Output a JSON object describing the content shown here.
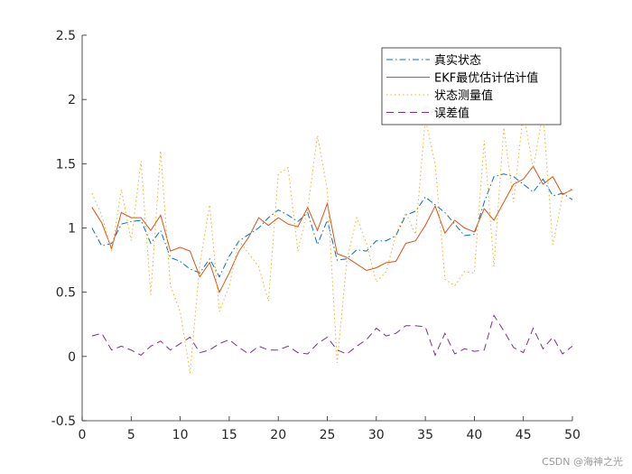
{
  "watermark": "CSDN @海神之光",
  "chart_data": {
    "type": "line",
    "xlim": [
      0,
      50
    ],
    "ylim": [
      -0.5,
      2.5
    ],
    "xticks": [
      0,
      5,
      10,
      15,
      20,
      25,
      30,
      35,
      40,
      45,
      50
    ],
    "yticks": [
      -0.5,
      0,
      0.5,
      1,
      1.5,
      2,
      2.5
    ],
    "xtick_labels": [
      "0",
      "5",
      "10",
      "15",
      "20",
      "25",
      "30",
      "35",
      "40",
      "45",
      "50"
    ],
    "ytick_labels": [
      "-0.5",
      "0",
      "0.5",
      "1",
      "1.5",
      "2",
      "2.5"
    ],
    "legend_position": "top-right",
    "grid": false,
    "x": [
      1,
      2,
      3,
      4,
      5,
      6,
      7,
      8,
      9,
      10,
      11,
      12,
      13,
      14,
      15,
      16,
      17,
      18,
      19,
      20,
      21,
      22,
      23,
      24,
      25,
      26,
      27,
      28,
      29,
      30,
      31,
      32,
      33,
      34,
      35,
      36,
      37,
      38,
      39,
      40,
      41,
      42,
      43,
      44,
      45,
      46,
      47,
      48,
      49,
      50
    ],
    "series": [
      {
        "name": "真实状态",
        "color": "#0072BD",
        "style": "dashdot",
        "values": [
          1.0,
          0.86,
          0.88,
          1.03,
          1.05,
          1.06,
          0.88,
          0.98,
          0.77,
          0.74,
          0.68,
          0.65,
          0.76,
          0.62,
          0.78,
          0.9,
          0.95,
          1.0,
          1.08,
          1.14,
          1.1,
          1.05,
          1.12,
          0.87,
          1.06,
          0.75,
          0.76,
          0.83,
          0.82,
          0.9,
          0.9,
          0.94,
          1.1,
          1.13,
          1.24,
          1.18,
          1.12,
          1.03,
          0.94,
          0.95,
          1.2,
          1.4,
          1.42,
          1.4,
          1.34,
          1.28,
          1.38,
          1.25,
          1.27,
          1.22
        ]
      },
      {
        "name": "EKF最优估计估计值",
        "color": "#D95319",
        "style": "solid",
        "values": [
          1.16,
          1.04,
          0.84,
          1.12,
          1.08,
          1.08,
          0.98,
          1.1,
          0.82,
          0.85,
          0.82,
          0.62,
          0.73,
          0.5,
          0.65,
          0.82,
          0.93,
          1.08,
          1.02,
          1.08,
          1.03,
          1.01,
          1.16,
          0.98,
          1.19,
          0.8,
          0.77,
          0.72,
          0.67,
          0.69,
          0.73,
          0.74,
          0.88,
          0.9,
          1.02,
          1.17,
          0.96,
          1.06,
          1.0,
          0.97,
          1.15,
          1.06,
          1.2,
          1.34,
          1.38,
          1.48,
          1.34,
          1.4,
          1.26,
          1.3
        ]
      },
      {
        "name": "状态测量值",
        "color": "#EDB120",
        "style": "dotted",
        "values": [
          1.27,
          1.1,
          0.82,
          1.3,
          0.9,
          1.52,
          0.48,
          1.6,
          0.55,
          0.35,
          -0.13,
          0.72,
          1.18,
          0.35,
          0.55,
          0.9,
          0.8,
          0.7,
          0.43,
          1.42,
          1.47,
          0.82,
          1.15,
          1.72,
          1.3,
          -0.05,
          0.75,
          1.08,
          0.88,
          0.58,
          0.66,
          0.95,
          1.12,
          0.95,
          1.85,
          1.5,
          0.6,
          0.55,
          0.66,
          0.65,
          1.68,
          0.7,
          1.78,
          1.2,
          1.9,
          1.46,
          1.9,
          0.87,
          1.25,
          1.31
        ]
      },
      {
        "name": "误差值",
        "color": "#7E2F8E",
        "style": "dashed",
        "values": [
          0.16,
          0.18,
          0.05,
          0.08,
          0.05,
          0.01,
          0.08,
          0.12,
          0.05,
          0.1,
          0.15,
          0.03,
          0.05,
          0.1,
          0.13,
          0.07,
          0.02,
          0.08,
          0.05,
          0.05,
          0.08,
          0.03,
          0.02,
          0.1,
          0.15,
          0.05,
          0.02,
          0.08,
          0.13,
          0.22,
          0.16,
          0.18,
          0.24,
          0.24,
          0.23,
          0.01,
          0.18,
          0.02,
          0.06,
          0.04,
          0.05,
          0.32,
          0.2,
          0.07,
          0.03,
          0.22,
          0.06,
          0.15,
          0.02,
          0.08
        ]
      }
    ]
  }
}
